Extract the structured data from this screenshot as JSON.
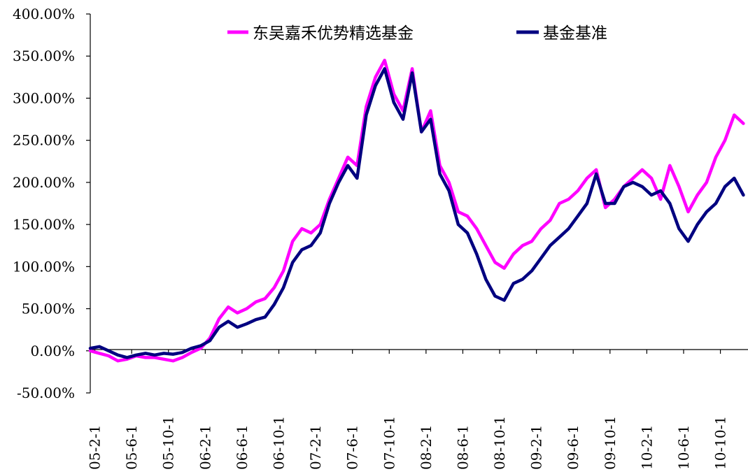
{
  "chart_data": {
    "type": "line",
    "title": "",
    "xlabel": "",
    "ylabel": "",
    "ylim": [
      -0.5,
      4.0
    ],
    "y_tick_format": "percent_2dp_fullwidth_dot",
    "y_ticks": [
      -0.5,
      0.0,
      0.5,
      1.0,
      1.5,
      2.0,
      2.5,
      3.0,
      3.5,
      4.0
    ],
    "y_tick_labels": [
      "-50.00%",
      "0.00%",
      "50.00%",
      "100.00%",
      "150.00%",
      "200.00%",
      "250.00%",
      "300.00%",
      "350.00%",
      "400.00%"
    ],
    "x_range_months": [
      "2005-02",
      "2011-01"
    ],
    "x_tick_labels": [
      "05-2-1",
      "05-6-1",
      "05-10-1",
      "06-2-1",
      "06-6-1",
      "06-10-1",
      "07-2-1",
      "07-6-1",
      "07-10-1",
      "08-2-1",
      "08-6-1",
      "08-10-1",
      "09-2-1",
      "09-6-1",
      "09-10-1",
      "10-2-1",
      "10-6-1",
      "10-10-1"
    ],
    "x": [
      "2005-02",
      "2005-03",
      "2005-04",
      "2005-05",
      "2005-06",
      "2005-07",
      "2005-08",
      "2005-09",
      "2005-10",
      "2005-11",
      "2005-12",
      "2006-01",
      "2006-02",
      "2006-03",
      "2006-04",
      "2006-05",
      "2006-06",
      "2006-07",
      "2006-08",
      "2006-09",
      "2006-10",
      "2006-11",
      "2006-12",
      "2007-01",
      "2007-02",
      "2007-03",
      "2007-04",
      "2007-05",
      "2007-06",
      "2007-07",
      "2007-08",
      "2007-09",
      "2007-10",
      "2007-11",
      "2007-12",
      "2008-01",
      "2008-02",
      "2008-03",
      "2008-04",
      "2008-05",
      "2008-06",
      "2008-07",
      "2008-08",
      "2008-09",
      "2008-10",
      "2008-11",
      "2008-12",
      "2009-01",
      "2009-02",
      "2009-03",
      "2009-04",
      "2009-05",
      "2009-06",
      "2009-07",
      "2009-08",
      "2009-09",
      "2009-10",
      "2009-11",
      "2009-12",
      "2010-01",
      "2010-02",
      "2010-03",
      "2010-04",
      "2010-05",
      "2010-06",
      "2010-07",
      "2010-08",
      "2010-09",
      "2010-10",
      "2010-11",
      "2010-12",
      "2011-01"
    ],
    "series": [
      {
        "name": "东吴嘉禾优势精选基金",
        "color": "#ff00ff",
        "values": [
          0.0,
          -0.03,
          -0.06,
          -0.12,
          -0.1,
          -0.06,
          -0.08,
          -0.08,
          -0.1,
          -0.12,
          -0.08,
          -0.02,
          0.03,
          0.15,
          0.38,
          0.52,
          0.45,
          0.5,
          0.58,
          0.62,
          0.75,
          0.95,
          1.3,
          1.45,
          1.4,
          1.5,
          1.8,
          2.05,
          2.3,
          2.2,
          2.9,
          3.25,
          3.45,
          3.05,
          2.85,
          3.35,
          2.6,
          2.85,
          2.2,
          2.0,
          1.65,
          1.6,
          1.45,
          1.25,
          1.05,
          0.98,
          1.15,
          1.25,
          1.3,
          1.45,
          1.55,
          1.75,
          1.8,
          1.9,
          2.05,
          2.15,
          1.7,
          1.8,
          1.95,
          2.05,
          2.15,
          2.05,
          1.8,
          2.2,
          1.95,
          1.65,
          1.85,
          2.0,
          2.3,
          2.5,
          2.8,
          2.7
        ]
      },
      {
        "name": "基金基准",
        "color": "#000080",
        "values": [
          0.03,
          0.05,
          0.0,
          -0.05,
          -0.08,
          -0.05,
          -0.03,
          -0.05,
          -0.03,
          -0.04,
          -0.02,
          0.03,
          0.06,
          0.12,
          0.28,
          0.35,
          0.28,
          0.32,
          0.37,
          0.4,
          0.55,
          0.75,
          1.05,
          1.2,
          1.25,
          1.4,
          1.75,
          2.0,
          2.2,
          2.05,
          2.8,
          3.15,
          3.35,
          2.95,
          2.75,
          3.3,
          2.6,
          2.75,
          2.1,
          1.9,
          1.5,
          1.4,
          1.15,
          0.85,
          0.65,
          0.6,
          0.8,
          0.85,
          0.95,
          1.1,
          1.25,
          1.35,
          1.45,
          1.6,
          1.75,
          2.1,
          1.75,
          1.75,
          1.95,
          2.0,
          1.95,
          1.85,
          1.9,
          1.75,
          1.45,
          1.3,
          1.5,
          1.65,
          1.75,
          1.95,
          2.05,
          1.85
        ]
      }
    ],
    "legend_position": "top-center"
  }
}
